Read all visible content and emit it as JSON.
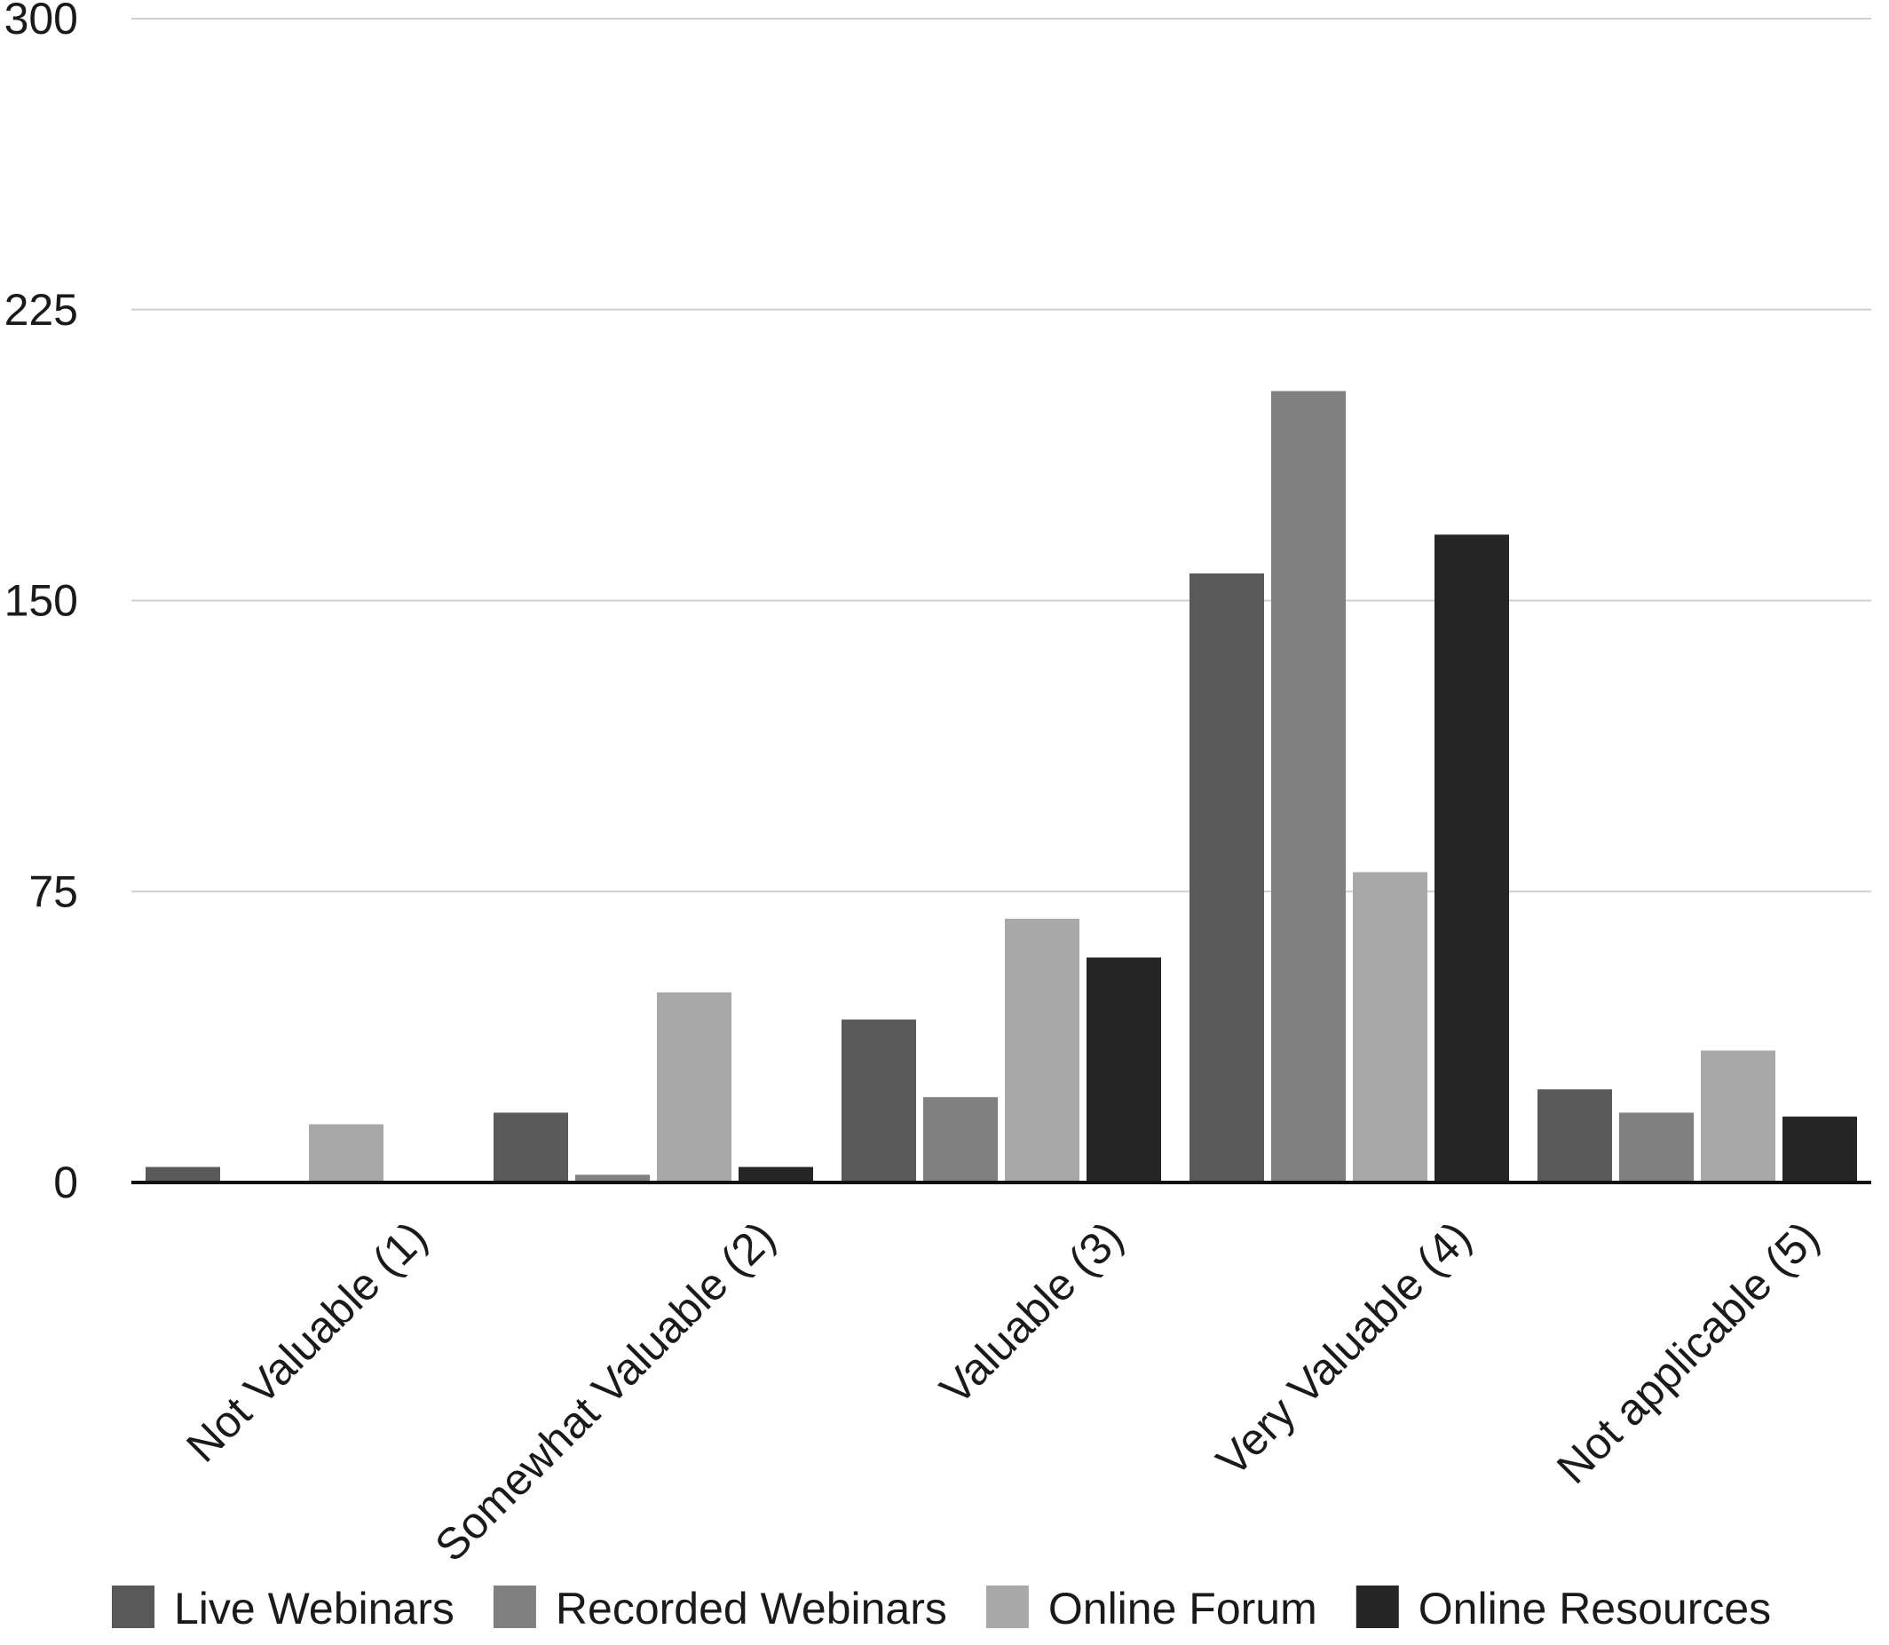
{
  "chart_data": {
    "type": "bar",
    "title": "",
    "xlabel": "",
    "ylabel": "",
    "ylim": [
      0,
      300
    ],
    "yticks": [
      0,
      75,
      150,
      225,
      300
    ],
    "grid": true,
    "legend_position": "bottom",
    "categories": [
      "Not Valuable (1)",
      "Somewhat Valuable (2)",
      "Valuable (3)",
      "Very Valuable (4)",
      "Not applicable (5)"
    ],
    "series": [
      {
        "name": "Live Webinars",
        "color": "#595959",
        "values": [
          4,
          18,
          42,
          157,
          24
        ]
      },
      {
        "name": "Recorded Webinars",
        "color": "#808080",
        "values": [
          0,
          2,
          22,
          204,
          18
        ]
      },
      {
        "name": "Online Forum",
        "color": "#a8a8a8",
        "values": [
          15,
          49,
          68,
          80,
          34
        ]
      },
      {
        "name": "Online Resources",
        "color": "#262626",
        "values": [
          0,
          4,
          58,
          167,
          17
        ]
      }
    ]
  }
}
